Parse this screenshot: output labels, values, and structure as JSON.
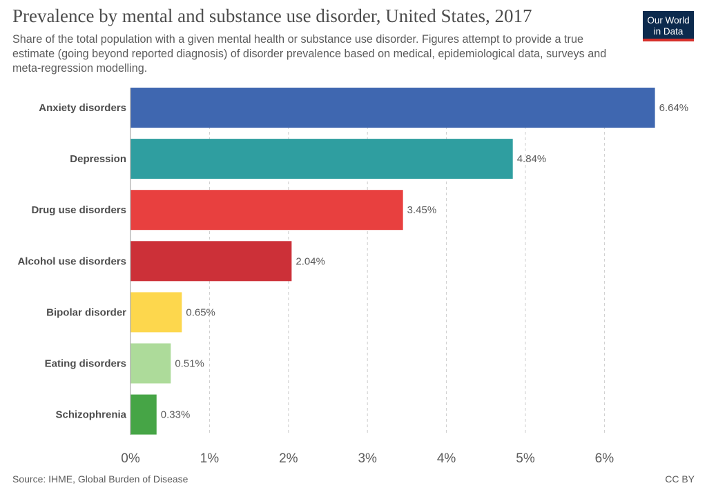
{
  "logo": {
    "line1": "Our World",
    "line2": "in Data"
  },
  "footer": {
    "source": "Source: IHME, Global Burden of Disease",
    "license": "CC BY"
  },
  "colors": {
    "background": "#ffffff",
    "logo_bg": "#0c2a4d",
    "logo_accent": "#d7302b",
    "grid": "#cccccc"
  },
  "chart_data": {
    "type": "bar",
    "orientation": "horizontal",
    "title": "Prevalence by mental and substance use disorder, United States, 2017",
    "subtitle": "Share of the total population with a given mental health or substance use disorder. Figures attempt to provide a true estimate (going beyond reported diagnosis) of disorder prevalence based on medical, epidemiological data, surveys and meta-regression modelling.",
    "categories": [
      "Anxiety disorders",
      "Depression",
      "Drug use disorders",
      "Alcohol use disorders",
      "Bipolar disorder",
      "Eating disorders",
      "Schizophrenia"
    ],
    "values": [
      6.64,
      4.84,
      3.45,
      2.04,
      0.65,
      0.51,
      0.33
    ],
    "value_labels": [
      "6.64%",
      "4.84%",
      "3.45%",
      "2.04%",
      "0.65%",
      "0.51%",
      "0.33%"
    ],
    "bar_colors": [
      "#3f67b0",
      "#2f9ea0",
      "#e8403f",
      "#cc3038",
      "#fdd74d",
      "#addb9a",
      "#46a546"
    ],
    "xlim": [
      0,
      7
    ],
    "xticks": [
      0,
      1,
      2,
      3,
      4,
      5,
      6
    ],
    "xtick_labels": [
      "0%",
      "1%",
      "2%",
      "3%",
      "4%",
      "5%",
      "6%"
    ],
    "xlabel": "",
    "ylabel": "",
    "grid": "vertical-dashed"
  }
}
